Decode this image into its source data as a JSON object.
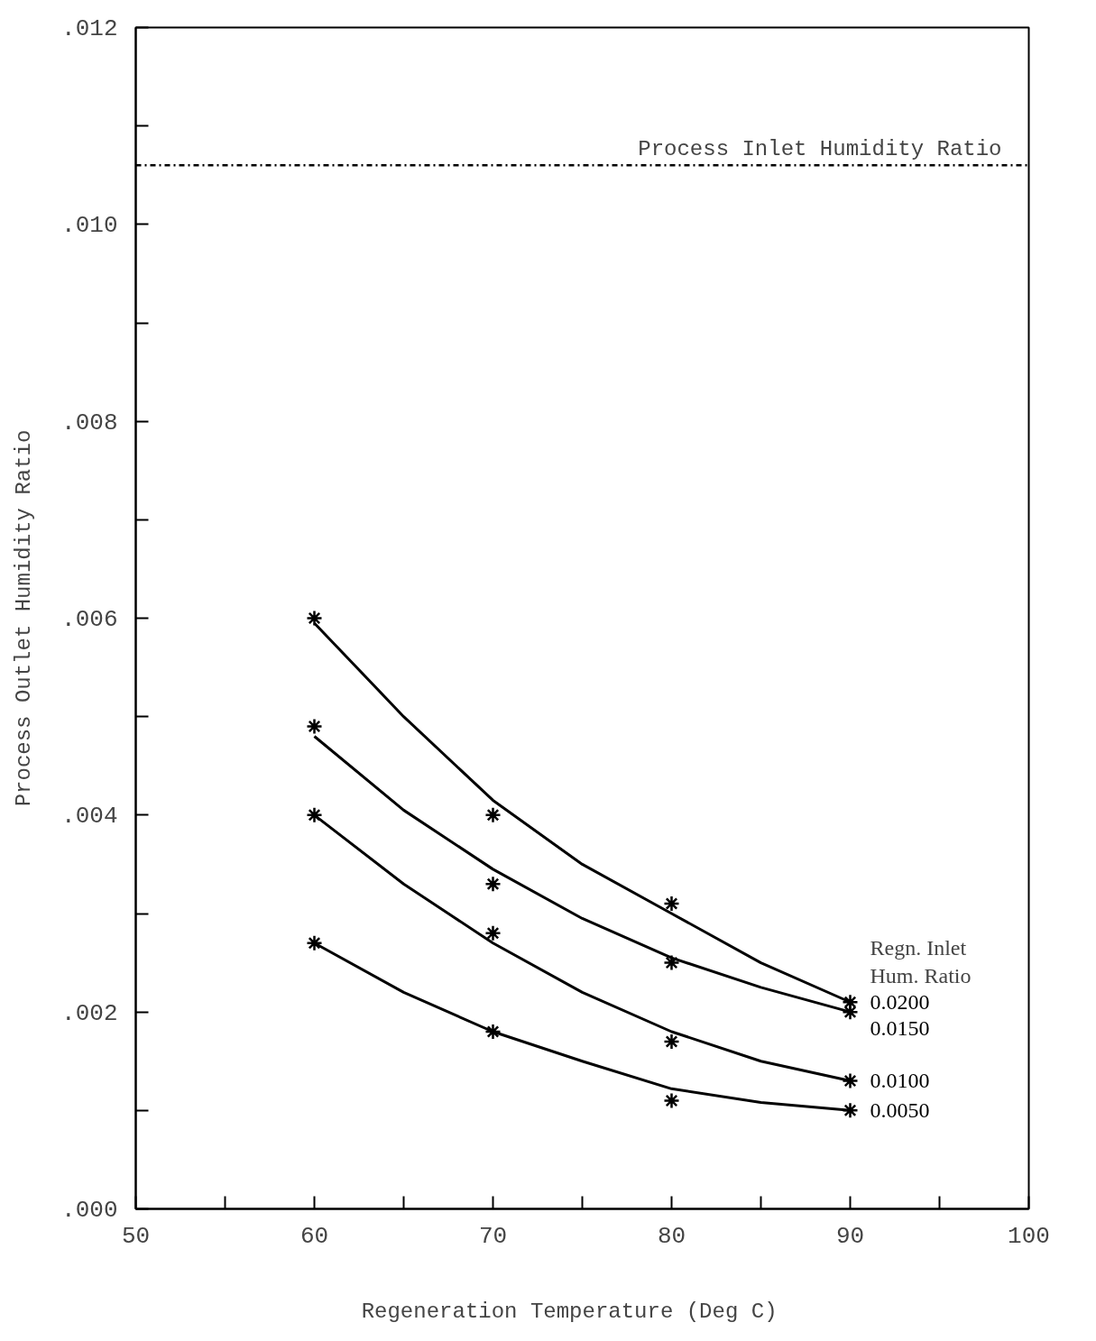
{
  "chart_data": {
    "type": "scatter",
    "xlabel": "Regeneration Temperature   (Deg C)",
    "ylabel": "Process Outlet Humidity Ratio",
    "legend_title": "Regn. Inlet\nHum. Ratio",
    "xlim": [
      50,
      100
    ],
    "ylim": [
      0,
      0.012
    ],
    "xticks": [
      {
        "value": 50,
        "label": "50"
      },
      {
        "value": 55,
        "label": null
      },
      {
        "value": 60,
        "label": "60"
      },
      {
        "value": 65,
        "label": null
      },
      {
        "value": 70,
        "label": "70"
      },
      {
        "value": 75,
        "label": null
      },
      {
        "value": 80,
        "label": "80"
      },
      {
        "value": 85,
        "label": null
      },
      {
        "value": 90,
        "label": "90"
      },
      {
        "value": 95,
        "label": null
      },
      {
        "value": 100,
        "label": "100"
      }
    ],
    "yticks": [
      {
        "value": 0,
        "label": ".000"
      },
      {
        "value": 0.001,
        "label": null
      },
      {
        "value": 0.002,
        "label": ".002"
      },
      {
        "value": 0.003,
        "label": null
      },
      {
        "value": 0.004,
        "label": ".004"
      },
      {
        "value": 0.005,
        "label": null
      },
      {
        "value": 0.006,
        "label": ".006"
      },
      {
        "value": 0.007,
        "label": null
      },
      {
        "value": 0.008,
        "label": ".008"
      },
      {
        "value": 0.009,
        "label": null
      },
      {
        "value": 0.01,
        "label": ".010"
      },
      {
        "value": 0.011,
        "label": null
      },
      {
        "value": 0.012,
        "label": ".012"
      }
    ],
    "grid": false,
    "marker": "cross",
    "ref_lines": [
      {
        "axis": "y",
        "value": 0.0106,
        "label": "Process Inlet Humidity Ratio",
        "color": "#000000",
        "line_style": "dashdot"
      }
    ],
    "series": [
      {
        "name": "0.0200",
        "color": "#000000",
        "x": [
          60,
          70,
          80,
          90
        ],
        "values": [
          0.006,
          0.004,
          0.0031,
          0.0021
        ]
      },
      {
        "name": "0.0150",
        "color": "#000000",
        "x": [
          60,
          70,
          80,
          90
        ],
        "values": [
          0.0049,
          0.0033,
          0.0025,
          0.002
        ]
      },
      {
        "name": "0.0100",
        "color": "#000000",
        "x": [
          60,
          70,
          80,
          90
        ],
        "values": [
          0.004,
          0.0028,
          0.0017,
          0.0013
        ]
      },
      {
        "name": "0.0050",
        "color": "#000000",
        "x": [
          60,
          70,
          80,
          90
        ],
        "values": [
          0.0027,
          0.0018,
          0.0011,
          0.001
        ]
      },
      {
        "type": "line",
        "marker": "none",
        "color": "#000000",
        "x": [
          60,
          65,
          70,
          75,
          80,
          85,
          90
        ],
        "values": [
          0.00595,
          0.005,
          0.00415,
          0.0035,
          0.003,
          0.0025,
          0.0021
        ]
      },
      {
        "type": "line",
        "marker": "none",
        "color": "#000000",
        "x": [
          60,
          65,
          70,
          75,
          80,
          85,
          90
        ],
        "values": [
          0.0048,
          0.00405,
          0.00345,
          0.00295,
          0.00255,
          0.00225,
          0.002
        ]
      },
      {
        "type": "line",
        "marker": "none",
        "color": "#000000",
        "x": [
          60,
          65,
          70,
          75,
          80,
          85,
          90
        ],
        "values": [
          0.004,
          0.0033,
          0.0027,
          0.0022,
          0.0018,
          0.0015,
          0.0013
        ]
      },
      {
        "type": "line",
        "marker": "none",
        "color": "#000000",
        "x": [
          60,
          65,
          70,
          75,
          80,
          85,
          90
        ],
        "values": [
          0.0027,
          0.0022,
          0.0018,
          0.0015,
          0.00122,
          0.00108,
          0.001
        ]
      }
    ]
  }
}
